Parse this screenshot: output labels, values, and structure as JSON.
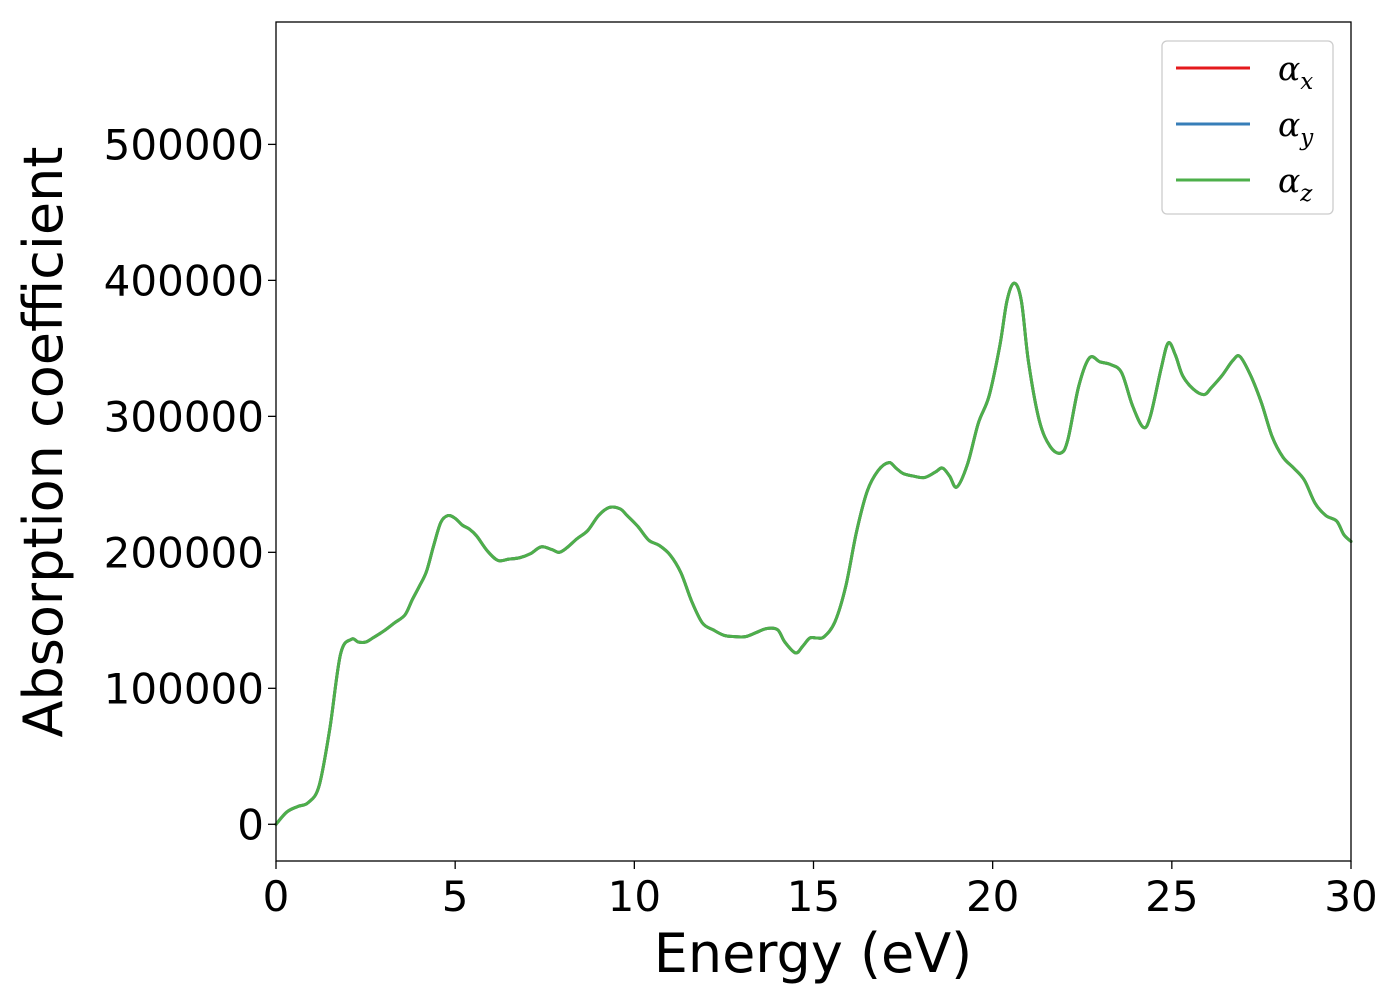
{
  "chart_data": {
    "type": "line",
    "title": "",
    "xlabel": "Energy (eV)",
    "ylabel": "Absorption coefficient",
    "xlim": [
      0,
      30
    ],
    "ylim": [
      -27000,
      590000
    ],
    "xticks": [
      0,
      5,
      10,
      15,
      20,
      25,
      30
    ],
    "xtick_labels": [
      "0",
      "5",
      "10",
      "15",
      "20",
      "25",
      "30"
    ],
    "yticks": [
      0,
      100000,
      200000,
      300000,
      400000,
      500000
    ],
    "ytick_labels": [
      "0",
      "100000",
      "200000",
      "300000",
      "400000",
      "500000"
    ],
    "grid": false,
    "legend": {
      "placement": "top-right"
    },
    "x": [
      0,
      0.3,
      0.6,
      0.9,
      1.2,
      1.5,
      1.8,
      2.1,
      2.3,
      2.5,
      2.7,
      3.0,
      3.3,
      3.6,
      3.8,
      4.0,
      4.2,
      4.4,
      4.6,
      4.8,
      5.0,
      5.2,
      5.4,
      5.6,
      5.9,
      6.2,
      6.5,
      6.8,
      7.1,
      7.4,
      7.7,
      7.9,
      8.1,
      8.4,
      8.7,
      9.0,
      9.3,
      9.6,
      9.8,
      10.1,
      10.4,
      10.7,
      11.0,
      11.3,
      11.6,
      11.9,
      12.2,
      12.5,
      12.8,
      13.1,
      13.4,
      13.7,
      14.0,
      14.2,
      14.5,
      14.7,
      14.9,
      15.1,
      15.3,
      15.6,
      15.9,
      16.2,
      16.5,
      16.8,
      17.1,
      17.3,
      17.5,
      17.8,
      18.1,
      18.4,
      18.6,
      18.8,
      19.0,
      19.3,
      19.6,
      19.9,
      20.2,
      20.4,
      20.6,
      20.8,
      21.0,
      21.3,
      21.6,
      21.9,
      22.1,
      22.4,
      22.7,
      23.0,
      23.3,
      23.6,
      23.9,
      24.2,
      24.4,
      24.7,
      24.9,
      25.1,
      25.3,
      25.6,
      25.9,
      26.1,
      26.4,
      26.7,
      26.9,
      27.2,
      27.5,
      27.8,
      28.1,
      28.4,
      28.7,
      29.0,
      29.3,
      29.6,
      29.8,
      30.0
    ],
    "series": [
      {
        "name": "α_x",
        "color": "#e41a1c",
        "y": [
          0,
          9000,
          13000,
          16000,
          28000,
          70000,
          125000,
          136000,
          134000,
          134000,
          137000,
          142000,
          148000,
          154000,
          165000,
          175000,
          186000,
          205000,
          222000,
          227000,
          225000,
          220000,
          217000,
          212000,
          201000,
          194000,
          195000,
          196000,
          199000,
          204000,
          202000,
          200000,
          203000,
          210000,
          216000,
          227000,
          233000,
          232000,
          227000,
          219000,
          209000,
          205000,
          198000,
          185000,
          164000,
          148000,
          143000,
          139000,
          138000,
          138000,
          141000,
          144000,
          143000,
          134000,
          126000,
          131000,
          137000,
          137000,
          138000,
          149000,
          175000,
          215000,
          245000,
          260000,
          266000,
          262000,
          258000,
          256000,
          255000,
          259000,
          262000,
          256000,
          248000,
          265000,
          295000,
          315000,
          352000,
          385000,
          398000,
          385000,
          340000,
          297000,
          278000,
          273000,
          283000,
          322000,
          343000,
          340000,
          338000,
          332000,
          308000,
          292000,
          300000,
          335000,
          354000,
          345000,
          330000,
          320000,
          316000,
          321000,
          330000,
          341000,
          344000,
          330000,
          310000,
          285000,
          270000,
          262000,
          253000,
          236000,
          227000,
          223000,
          213000,
          208000
        ]
      },
      {
        "name": "α_y",
        "color": "#377eb8",
        "y": [
          0,
          9000,
          13000,
          16000,
          28000,
          70000,
          125000,
          136000,
          134000,
          134000,
          137000,
          142000,
          148000,
          154000,
          165000,
          175000,
          186000,
          205000,
          222000,
          227000,
          225000,
          220000,
          217000,
          212000,
          201000,
          194000,
          195000,
          196000,
          199000,
          204000,
          202000,
          200000,
          203000,
          210000,
          216000,
          227000,
          233000,
          232000,
          227000,
          219000,
          209000,
          205000,
          198000,
          185000,
          164000,
          148000,
          143000,
          139000,
          138000,
          138000,
          141000,
          144000,
          143000,
          134000,
          126000,
          131000,
          137000,
          137000,
          138000,
          149000,
          175000,
          215000,
          245000,
          260000,
          266000,
          262000,
          258000,
          256000,
          255000,
          259000,
          262000,
          256000,
          248000,
          265000,
          295000,
          315000,
          352000,
          385000,
          398000,
          385000,
          340000,
          297000,
          278000,
          273000,
          283000,
          322000,
          343000,
          340000,
          338000,
          332000,
          308000,
          292000,
          300000,
          335000,
          354000,
          345000,
          330000,
          320000,
          316000,
          321000,
          330000,
          341000,
          344000,
          330000,
          310000,
          285000,
          270000,
          262000,
          253000,
          236000,
          227000,
          223000,
          213000,
          208000
        ]
      },
      {
        "name": "α_z",
        "color": "#4daf4a",
        "y": [
          0,
          9000,
          13000,
          16000,
          28000,
          70000,
          125000,
          136000,
          134000,
          134000,
          137000,
          142000,
          148000,
          154000,
          165000,
          175000,
          186000,
          205000,
          222000,
          227000,
          225000,
          220000,
          217000,
          212000,
          201000,
          194000,
          195000,
          196000,
          199000,
          204000,
          202000,
          200000,
          203000,
          210000,
          216000,
          227000,
          233000,
          232000,
          227000,
          219000,
          209000,
          205000,
          198000,
          185000,
          164000,
          148000,
          143000,
          139000,
          138000,
          138000,
          141000,
          144000,
          143000,
          134000,
          126000,
          131000,
          137000,
          137000,
          138000,
          149000,
          175000,
          215000,
          245000,
          260000,
          266000,
          262000,
          258000,
          256000,
          255000,
          259000,
          262000,
          256000,
          248000,
          265000,
          295000,
          315000,
          352000,
          385000,
          398000,
          385000,
          340000,
          297000,
          278000,
          273000,
          283000,
          322000,
          343000,
          340000,
          338000,
          332000,
          308000,
          292000,
          300000,
          335000,
          354000,
          345000,
          330000,
          320000,
          316000,
          321000,
          330000,
          341000,
          344000,
          330000,
          310000,
          285000,
          270000,
          262000,
          253000,
          236000,
          227000,
          223000,
          213000,
          208000
        ]
      }
    ],
    "legend_entries": [
      {
        "symbol": "α",
        "sub": "x",
        "color": "#e41a1c"
      },
      {
        "symbol": "α",
        "sub": "y",
        "color": "#377eb8"
      },
      {
        "symbol": "α",
        "sub": "z",
        "color": "#4daf4a"
      }
    ]
  }
}
